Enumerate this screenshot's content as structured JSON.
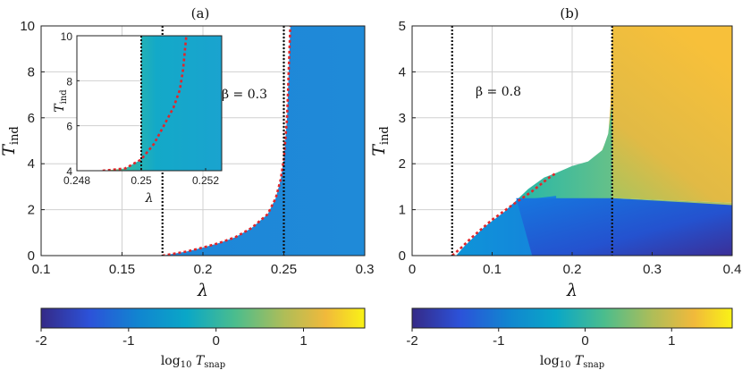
{
  "chart_data": [
    {
      "panel": "(a)",
      "type": "heatmap",
      "xlabel": "λ",
      "ylabel": "T_ind",
      "xlim": [
        0.1,
        0.3
      ],
      "ylim": [
        0,
        10
      ],
      "xticks": [
        "0.1",
        "0.15",
        "0.2",
        "0.25",
        "0.3"
      ],
      "yticks": [
        "0",
        "2",
        "4",
        "6",
        "8",
        "10"
      ],
      "annotation": "β = 0.3",
      "vertical_lines": [
        0.175,
        0.25
      ],
      "boundary": [
        [
          0.175,
          0.0
        ],
        [
          0.19,
          0.18
        ],
        [
          0.2,
          0.35
        ],
        [
          0.21,
          0.55
        ],
        [
          0.22,
          0.8
        ],
        [
          0.23,
          1.2
        ],
        [
          0.24,
          1.8
        ],
        [
          0.245,
          2.5
        ],
        [
          0.248,
          3.3
        ],
        [
          0.25,
          4.2
        ],
        [
          0.252,
          6.0
        ],
        [
          0.253,
          8.0
        ],
        [
          0.254,
          10.0
        ]
      ],
      "inset": {
        "xlabel": "λ",
        "ylabel": "T_ind",
        "xlim": [
          0.248,
          0.2525
        ],
        "ylim": [
          4,
          10
        ],
        "xticks": [
          "0.248",
          "0.25",
          "0.252"
        ],
        "yticks": [
          "4",
          "6",
          "8",
          "10"
        ],
        "vertical_line": 0.25,
        "boundary": [
          [
            0.2488,
            4.0
          ],
          [
            0.2495,
            4.1
          ],
          [
            0.25,
            4.5
          ],
          [
            0.2504,
            5.2
          ],
          [
            0.2507,
            6.0
          ],
          [
            0.251,
            6.8
          ],
          [
            0.2512,
            7.6
          ],
          [
            0.2513,
            8.5
          ],
          [
            0.2514,
            10.0
          ]
        ]
      },
      "colorbar": {
        "label": "log10 T_snap",
        "range": [
          -2,
          1.7
        ],
        "ticks": [
          "-2",
          "-1",
          "0",
          "1"
        ]
      }
    },
    {
      "panel": "(b)",
      "type": "heatmap",
      "xlabel": "λ",
      "ylabel": "T_ind",
      "xlim": [
        0,
        0.4
      ],
      "ylim": [
        0,
        5
      ],
      "xticks": [
        "0",
        "0.1",
        "0.2",
        "0.3",
        "0.4"
      ],
      "yticks": [
        "0",
        "1",
        "2",
        "3",
        "4",
        "5"
      ],
      "annotation": "β = 0.8",
      "vertical_lines": [
        0.05,
        0.25
      ],
      "boundary": [
        [
          0.05,
          0.0
        ],
        [
          0.06,
          0.15
        ],
        [
          0.075,
          0.4
        ],
        [
          0.1,
          0.78
        ],
        [
          0.125,
          1.1
        ],
        [
          0.15,
          1.4
        ],
        [
          0.17,
          1.68
        ],
        [
          0.18,
          1.8
        ]
      ],
      "colorbar": {
        "label": "log10 T_snap",
        "range": [
          -2,
          1.7
        ],
        "ticks": [
          "-2",
          "-1",
          "0",
          "1"
        ]
      }
    }
  ]
}
